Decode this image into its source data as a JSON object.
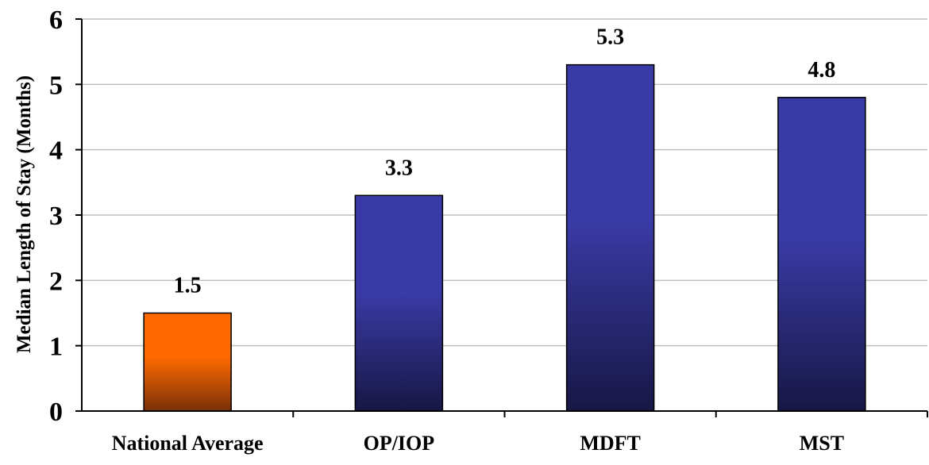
{
  "chart_data": {
    "type": "bar",
    "title": "",
    "xlabel": "",
    "ylabel": "Median Length of Stay  (Months)",
    "ylim": [
      0,
      6
    ],
    "yticks": [
      0,
      1,
      2,
      3,
      4,
      5,
      6
    ],
    "grid": true,
    "legend": "none",
    "categories": [
      "National Average",
      "OP/IOP",
      "MDFT",
      "MST"
    ],
    "values": [
      1.5,
      3.3,
      5.3,
      4.8
    ],
    "value_labels": [
      "1.5",
      "3.3",
      "5.3",
      "4.8"
    ],
    "bar_colors": [
      {
        "top": "#ff6a00",
        "bottom": "#7a3008"
      },
      {
        "top": "#3a3aa6",
        "bottom": "#171745"
      },
      {
        "top": "#3a3aa6",
        "bottom": "#171745"
      },
      {
        "top": "#3a3aa6",
        "bottom": "#171745"
      }
    ]
  }
}
